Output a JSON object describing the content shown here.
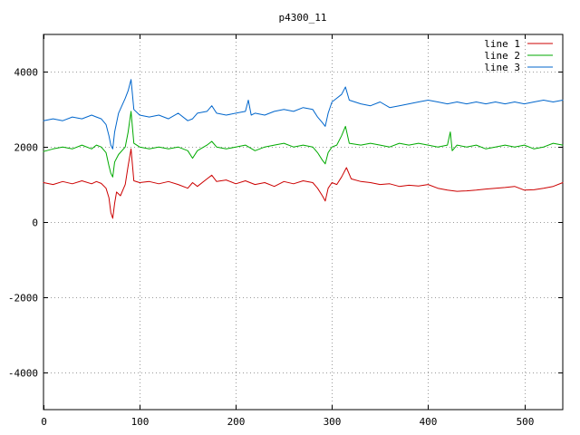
{
  "chart_data": {
    "type": "line",
    "title": "p4300_11",
    "xlabel": "",
    "ylabel": "",
    "xlim": [
      0,
      540
    ],
    "ylim": [
      -5000,
      5000
    ],
    "x_ticks": [
      0,
      100,
      200,
      300,
      400,
      500
    ],
    "y_ticks": [
      -4000,
      -2000,
      0,
      2000,
      4000
    ],
    "grid": true,
    "legend_position": "top-right",
    "series": [
      {
        "name": "line 1",
        "color": "#cc0000",
        "points": [
          [
            0,
            1050
          ],
          [
            10,
            1000
          ],
          [
            20,
            1080
          ],
          [
            30,
            1020
          ],
          [
            40,
            1100
          ],
          [
            50,
            1020
          ],
          [
            55,
            1080
          ],
          [
            60,
            1030
          ],
          [
            65,
            900
          ],
          [
            68,
            650
          ],
          [
            70,
            250
          ],
          [
            72,
            100
          ],
          [
            74,
            500
          ],
          [
            76,
            800
          ],
          [
            80,
            700
          ],
          [
            85,
            1000
          ],
          [
            88,
            1500
          ],
          [
            91,
            1950
          ],
          [
            94,
            1100
          ],
          [
            100,
            1050
          ],
          [
            110,
            1080
          ],
          [
            120,
            1020
          ],
          [
            130,
            1080
          ],
          [
            140,
            1000
          ],
          [
            150,
            900
          ],
          [
            155,
            1050
          ],
          [
            160,
            950
          ],
          [
            170,
            1150
          ],
          [
            175,
            1250
          ],
          [
            180,
            1080
          ],
          [
            190,
            1120
          ],
          [
            200,
            1020
          ],
          [
            210,
            1100
          ],
          [
            220,
            1000
          ],
          [
            230,
            1050
          ],
          [
            240,
            950
          ],
          [
            250,
            1080
          ],
          [
            260,
            1020
          ],
          [
            270,
            1100
          ],
          [
            280,
            1050
          ],
          [
            285,
            900
          ],
          [
            290,
            700
          ],
          [
            293,
            560
          ],
          [
            296,
            900
          ],
          [
            300,
            1050
          ],
          [
            305,
            1000
          ],
          [
            310,
            1200
          ],
          [
            315,
            1450
          ],
          [
            320,
            1150
          ],
          [
            330,
            1080
          ],
          [
            340,
            1050
          ],
          [
            350,
            1000
          ],
          [
            360,
            1020
          ],
          [
            370,
            950
          ],
          [
            380,
            980
          ],
          [
            390,
            960
          ],
          [
            400,
            1000
          ],
          [
            410,
            900
          ],
          [
            420,
            850
          ],
          [
            430,
            820
          ],
          [
            440,
            830
          ],
          [
            450,
            850
          ],
          [
            460,
            880
          ],
          [
            470,
            900
          ],
          [
            480,
            920
          ],
          [
            490,
            950
          ],
          [
            500,
            850
          ],
          [
            510,
            860
          ],
          [
            520,
            900
          ],
          [
            530,
            950
          ],
          [
            540,
            1050
          ]
        ]
      },
      {
        "name": "line 2",
        "color": "#00aa00",
        "points": [
          [
            0,
            1880
          ],
          [
            10,
            1950
          ],
          [
            20,
            2000
          ],
          [
            30,
            1950
          ],
          [
            40,
            2050
          ],
          [
            50,
            1950
          ],
          [
            55,
            2050
          ],
          [
            60,
            2000
          ],
          [
            65,
            1850
          ],
          [
            68,
            1500
          ],
          [
            70,
            1300
          ],
          [
            72,
            1200
          ],
          [
            74,
            1600
          ],
          [
            78,
            1800
          ],
          [
            85,
            2000
          ],
          [
            88,
            2400
          ],
          [
            91,
            2950
          ],
          [
            94,
            2100
          ],
          [
            100,
            2000
          ],
          [
            110,
            1950
          ],
          [
            120,
            2000
          ],
          [
            130,
            1950
          ],
          [
            140,
            2000
          ],
          [
            150,
            1900
          ],
          [
            155,
            1700
          ],
          [
            160,
            1900
          ],
          [
            170,
            2050
          ],
          [
            175,
            2150
          ],
          [
            180,
            2000
          ],
          [
            190,
            1950
          ],
          [
            200,
            2000
          ],
          [
            210,
            2050
          ],
          [
            220,
            1900
          ],
          [
            230,
            2000
          ],
          [
            240,
            2050
          ],
          [
            250,
            2100
          ],
          [
            260,
            2000
          ],
          [
            270,
            2050
          ],
          [
            280,
            2000
          ],
          [
            285,
            1850
          ],
          [
            290,
            1650
          ],
          [
            293,
            1550
          ],
          [
            296,
            1850
          ],
          [
            300,
            2000
          ],
          [
            305,
            2050
          ],
          [
            310,
            2300
          ],
          [
            314,
            2550
          ],
          [
            318,
            2100
          ],
          [
            330,
            2050
          ],
          [
            340,
            2100
          ],
          [
            350,
            2050
          ],
          [
            360,
            2000
          ],
          [
            370,
            2100
          ],
          [
            380,
            2050
          ],
          [
            390,
            2100
          ],
          [
            400,
            2050
          ],
          [
            410,
            2000
          ],
          [
            420,
            2050
          ],
          [
            423,
            2400
          ],
          [
            425,
            1900
          ],
          [
            430,
            2050
          ],
          [
            440,
            2000
          ],
          [
            450,
            2050
          ],
          [
            460,
            1950
          ],
          [
            470,
            2000
          ],
          [
            480,
            2050
          ],
          [
            490,
            2000
          ],
          [
            500,
            2050
          ],
          [
            510,
            1950
          ],
          [
            520,
            2000
          ],
          [
            530,
            2100
          ],
          [
            540,
            2050
          ]
        ]
      },
      {
        "name": "line 3",
        "color": "#0066cc",
        "points": [
          [
            0,
            2700
          ],
          [
            10,
            2750
          ],
          [
            20,
            2700
          ],
          [
            30,
            2800
          ],
          [
            40,
            2750
          ],
          [
            50,
            2850
          ],
          [
            55,
            2800
          ],
          [
            60,
            2750
          ],
          [
            65,
            2600
          ],
          [
            68,
            2300
          ],
          [
            70,
            2050
          ],
          [
            72,
            1950
          ],
          [
            74,
            2400
          ],
          [
            78,
            2900
          ],
          [
            85,
            3300
          ],
          [
            88,
            3500
          ],
          [
            91,
            3800
          ],
          [
            94,
            3000
          ],
          [
            100,
            2850
          ],
          [
            110,
            2800
          ],
          [
            120,
            2850
          ],
          [
            130,
            2750
          ],
          [
            140,
            2900
          ],
          [
            150,
            2700
          ],
          [
            155,
            2750
          ],
          [
            160,
            2900
          ],
          [
            170,
            2950
          ],
          [
            175,
            3100
          ],
          [
            180,
            2900
          ],
          [
            190,
            2850
          ],
          [
            200,
            2900
          ],
          [
            210,
            2950
          ],
          [
            213,
            3250
          ],
          [
            216,
            2850
          ],
          [
            220,
            2900
          ],
          [
            230,
            2850
          ],
          [
            240,
            2950
          ],
          [
            250,
            3000
          ],
          [
            260,
            2950
          ],
          [
            270,
            3050
          ],
          [
            280,
            3000
          ],
          [
            285,
            2800
          ],
          [
            290,
            2650
          ],
          [
            293,
            2550
          ],
          [
            296,
            2900
          ],
          [
            300,
            3200
          ],
          [
            305,
            3300
          ],
          [
            310,
            3400
          ],
          [
            314,
            3600
          ],
          [
            318,
            3250
          ],
          [
            330,
            3150
          ],
          [
            340,
            3100
          ],
          [
            350,
            3200
          ],
          [
            360,
            3050
          ],
          [
            370,
            3100
          ],
          [
            380,
            3150
          ],
          [
            390,
            3200
          ],
          [
            400,
            3250
          ],
          [
            410,
            3200
          ],
          [
            420,
            3150
          ],
          [
            430,
            3200
          ],
          [
            440,
            3150
          ],
          [
            450,
            3200
          ],
          [
            460,
            3150
          ],
          [
            470,
            3200
          ],
          [
            480,
            3150
          ],
          [
            490,
            3200
          ],
          [
            500,
            3150
          ],
          [
            510,
            3200
          ],
          [
            520,
            3250
          ],
          [
            530,
            3200
          ],
          [
            540,
            3250
          ]
        ]
      }
    ]
  }
}
